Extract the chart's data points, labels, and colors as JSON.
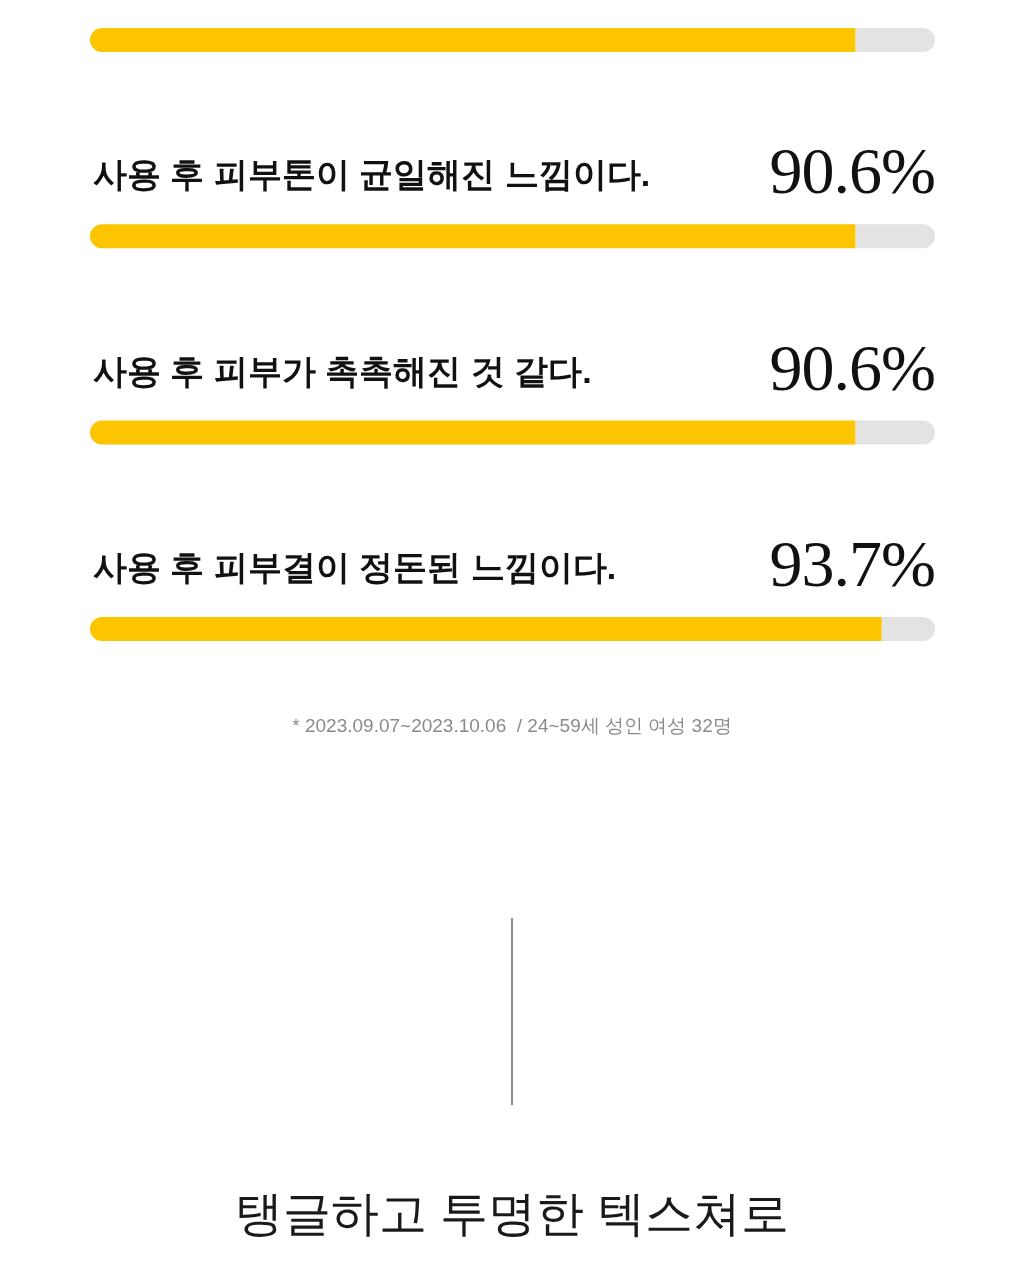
{
  "chart_data": {
    "type": "bar",
    "orientation": "horizontal",
    "stacked": true,
    "categories": [
      null,
      "사용 후 피부톤이 균일해진 느낌이다.",
      "사용 후 피부가 촉촉해진 것 같다.",
      "사용 후 피부결이 정돈된 느낌이다."
    ],
    "series": [
      {
        "color": "#fdc500",
        "values": [
          90.6,
          90.6,
          90.6,
          93.7
        ],
        "value_labels": [
          null,
          "90.6%",
          "90.6%",
          "93.7%"
        ]
      },
      {
        "color": "#e3e3e3",
        "values": [
          9.4,
          9.4,
          9.4,
          6.3
        ]
      }
    ],
    "xlim": [
      0,
      100
    ],
    "tick_labels": "y",
    "annotations": [
      "* 2023.09.07~2023.10.06  / 24~59세 성인 여성 32명",
      "탱글하고 투명한 텍스쳐로"
    ]
  }
}
